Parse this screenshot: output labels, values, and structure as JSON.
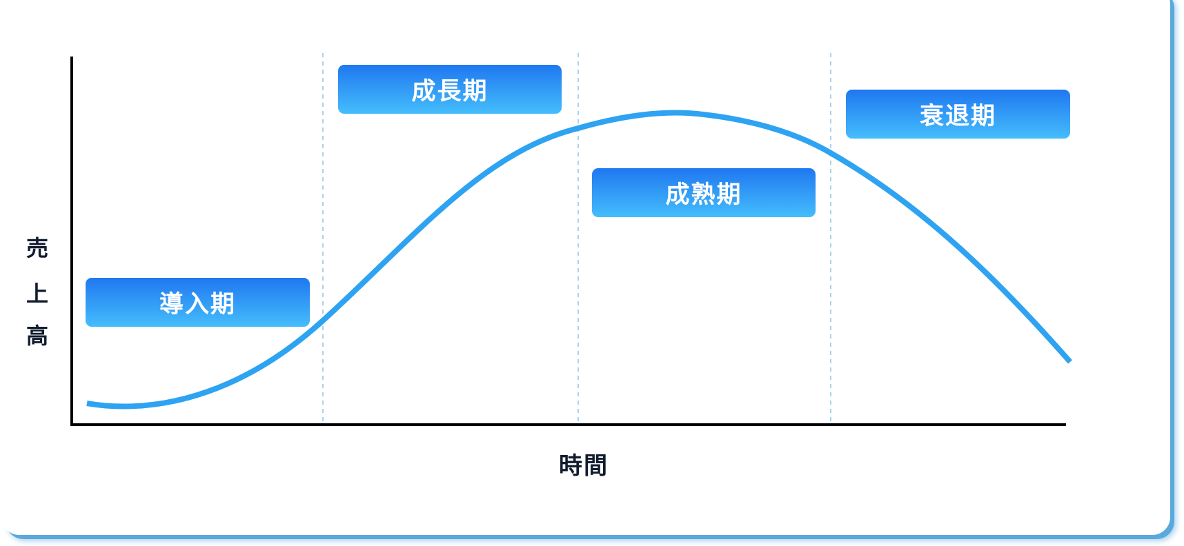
{
  "diagram": {
    "stages": [
      "導入期",
      "成長期",
      "成熟期",
      "衰退期"
    ],
    "y_axis_label": [
      "売",
      "上",
      "高"
    ],
    "x_axis_label": "時間",
    "colors": {
      "curve": "#2ea3f2",
      "stage_top": "#1f78f0",
      "stage_bottom": "#45bdfc",
      "divider": "#a9d4ec",
      "axis": "#000000",
      "frame_shadow": "#5aa9dd"
    }
  }
}
